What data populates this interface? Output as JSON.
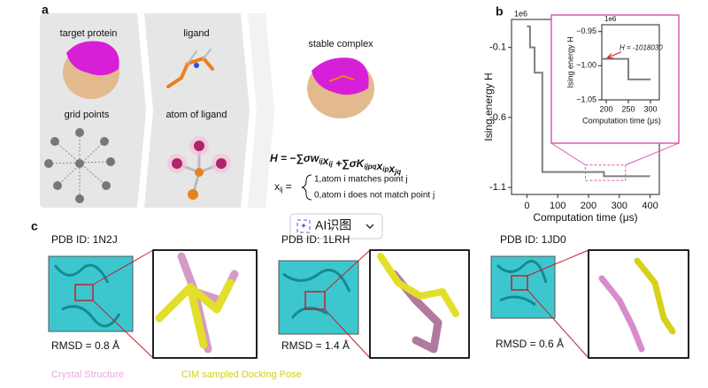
{
  "panel_a": {
    "label": "a",
    "target_protein": "target protein",
    "ligand": "ligand",
    "stable_complex": "stable complex",
    "grid_points": "grid points",
    "atom_of_ligand": "atom of ligand",
    "hamiltonian": [
      {
        "text": "H = −∑σ"
      },
      {
        "text": "w",
        "sub": "ij"
      },
      {
        "text": "x",
        "sub": "ij"
      },
      {
        "text": " +∑σ"
      },
      {
        "text": "K",
        "sub": "ijpq"
      },
      {
        "text": "x",
        "sub": "ip"
      },
      {
        "text": "x",
        "sub": "jq"
      }
    ],
    "x_def": {
      "var": "x",
      "sub": "ij",
      "eq": "=",
      "case1": "1,atom i matches point j",
      "case0": "0,atom i does not match point j"
    }
  },
  "chart_data": [
    {
      "type": "line",
      "panel_label": "b",
      "y_label": "Ising energy H",
      "x_label": "Computation time (μs)",
      "y_multiplier": "1e6",
      "xlim": [
        -50,
        430
      ],
      "ylim": [
        -1.15,
        0.1
      ],
      "xticks": [
        0,
        100,
        200,
        300,
        400
      ],
      "yticks": [
        -0.1,
        -0.6,
        -1.1
      ],
      "series": [
        {
          "color": "#7f7f7f",
          "x": [
            0,
            10,
            10,
            25,
            25,
            50,
            50,
            250,
            250,
            400
          ],
          "values": [
            0.05,
            0.05,
            -0.1,
            -0.1,
            -0.28,
            -0.28,
            -0.99,
            -0.99,
            -1.02,
            -1.02
          ]
        }
      ]
    },
    {
      "type": "line",
      "y_label": "Ising energy H",
      "x_label": "Computation time (μs)",
      "y_multiplier": "1e6",
      "border_color": "#d65cb8",
      "xlim": [
        190,
        320
      ],
      "ylim": [
        -1.05,
        -0.94
      ],
      "xticks": [
        200,
        250,
        300
      ],
      "yticks": [
        {
          "value": -0.95,
          "label": "−0.95"
        },
        {
          "value": -1,
          "label": "−1.00"
        },
        {
          "value": -1.05,
          "label": "−1.05"
        }
      ],
      "annotation": "H = -1018030",
      "annotation_color": "#e02020",
      "series": [
        {
          "color": "#7f7f7f",
          "x": [
            190,
            250,
            250,
            300
          ],
          "values": [
            -0.99,
            -0.99,
            -1.02,
            -1.02
          ]
        }
      ]
    }
  ],
  "overlay_button": {
    "text": "AI识图"
  },
  "panel_c": {
    "label": "c",
    "complexes": [
      {
        "pdb": "PDB ID: 1N2J",
        "rmsd": "RMSD = 0.8 Å"
      },
      {
        "pdb": "PDB ID: 1LRH",
        "rmsd": "RMSD = 1.4 Å"
      },
      {
        "pdb": "PDB ID: 1JD0",
        "rmsd": "RMSD = 0.6 Å"
      }
    ],
    "legend": [
      {
        "text": "Crystal Structure",
        "color": "#f0a6dc"
      },
      {
        "text": "CIM sampled Docking Pose",
        "color": "#d6cf1a"
      }
    ]
  }
}
